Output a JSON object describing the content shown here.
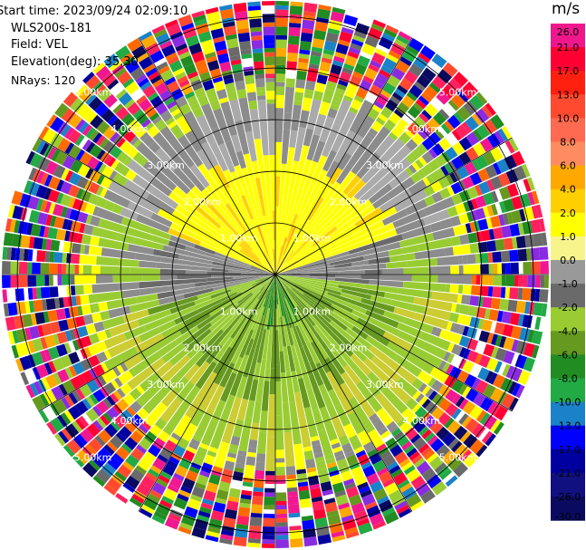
{
  "header": {
    "start_time": "Start time: 2023/09/24 02:09:10",
    "site": "WLS200s-181",
    "field": "Field: VEL",
    "elevation": "Elevation(deg): 35.30",
    "nrays": "NRays: 120"
  },
  "colorbar": {
    "unit": "m/s",
    "ticks": [
      "26.0",
      "21.0",
      "17.0",
      "13.0",
      "10.0",
      "8.0",
      "6.0",
      "4.0",
      "2.0",
      "1.0",
      "0.0",
      "-1.0",
      "-2.0",
      "-4.0",
      "-6.0",
      "-8.0",
      "-10.0",
      "-13.0",
      "-17.0",
      "-21.0",
      "-26.0",
      "-30.0"
    ],
    "colors": [
      "#f0178c",
      "#ff0033",
      "#ff2010",
      "#ff4a30",
      "#ff6a50",
      "#ff8c60",
      "#ffa800",
      "#ffd000",
      "#ffff00",
      "#f8f48c",
      "#999999",
      "#6a6a6a",
      "#99cc33",
      "#66991f",
      "#218c21",
      "#22aa44",
      "#1a82c8",
      "#0000ff",
      "#0000a0",
      "#101080",
      "#0a0a60"
    ]
  },
  "chart_data": {
    "type": "heatmap",
    "subtype": "ppi-polar",
    "field": "VEL",
    "unit": "m/s",
    "nrays": 120,
    "elevation_deg": 35.3,
    "range_ring_labels": [
      "1.00km",
      "2.00km",
      "3.00km",
      "4.00km",
      "5.00km"
    ],
    "range_max_km": 5.3,
    "color_levels": [
      -30,
      -26,
      -21,
      -17,
      -13,
      -10,
      -8,
      -6,
      -4,
      -2,
      -1,
      0,
      1,
      2,
      4,
      6,
      8,
      10,
      13,
      17,
      21,
      26
    ]
  }
}
